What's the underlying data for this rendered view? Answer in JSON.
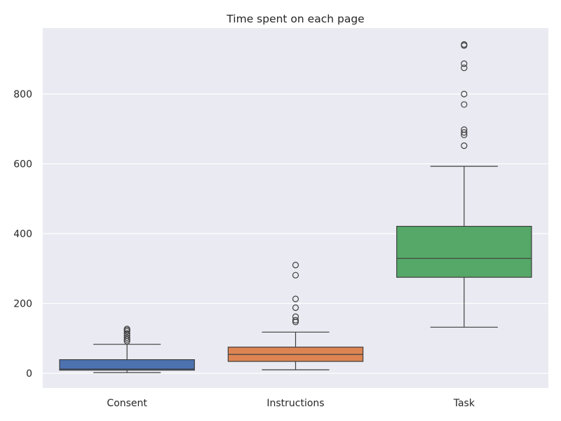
{
  "chart_data": {
    "type": "box",
    "title": "Time spent on each page",
    "xlabel": "",
    "ylabel": "",
    "ylim": [
      -45,
      985
    ],
    "yticks": [
      0,
      200,
      400,
      600,
      800
    ],
    "grid": true,
    "categories": [
      "Consent",
      "Instructions",
      "Task"
    ],
    "boxes": [
      {
        "category": "Consent",
        "color": "#4c72b0",
        "whisker_low": 2,
        "q1": 9,
        "median": 12,
        "q3": 39,
        "whisker_high": 83,
        "outliers": [
          92,
          97,
          102,
          108,
          114,
          120,
          124,
          127
        ]
      },
      {
        "category": "Instructions",
        "color": "#dd8452",
        "whisker_low": 10,
        "q1": 34,
        "median": 54,
        "q3": 75,
        "whisker_high": 118,
        "outliers": [
          147,
          152,
          162,
          188,
          213,
          281,
          310
        ]
      },
      {
        "category": "Task",
        "color": "#55a868",
        "whisker_low": 132,
        "q1": 275,
        "median": 329,
        "q3": 421,
        "whisker_high": 593,
        "outliers": [
          652,
          683,
          690,
          698,
          770,
          800,
          875,
          887,
          939,
          942
        ]
      }
    ]
  },
  "colors": {
    "plot_background": "#eaeaf2",
    "grid": "#ffffff",
    "edge": "#3f3f3f",
    "text": "#262626"
  }
}
